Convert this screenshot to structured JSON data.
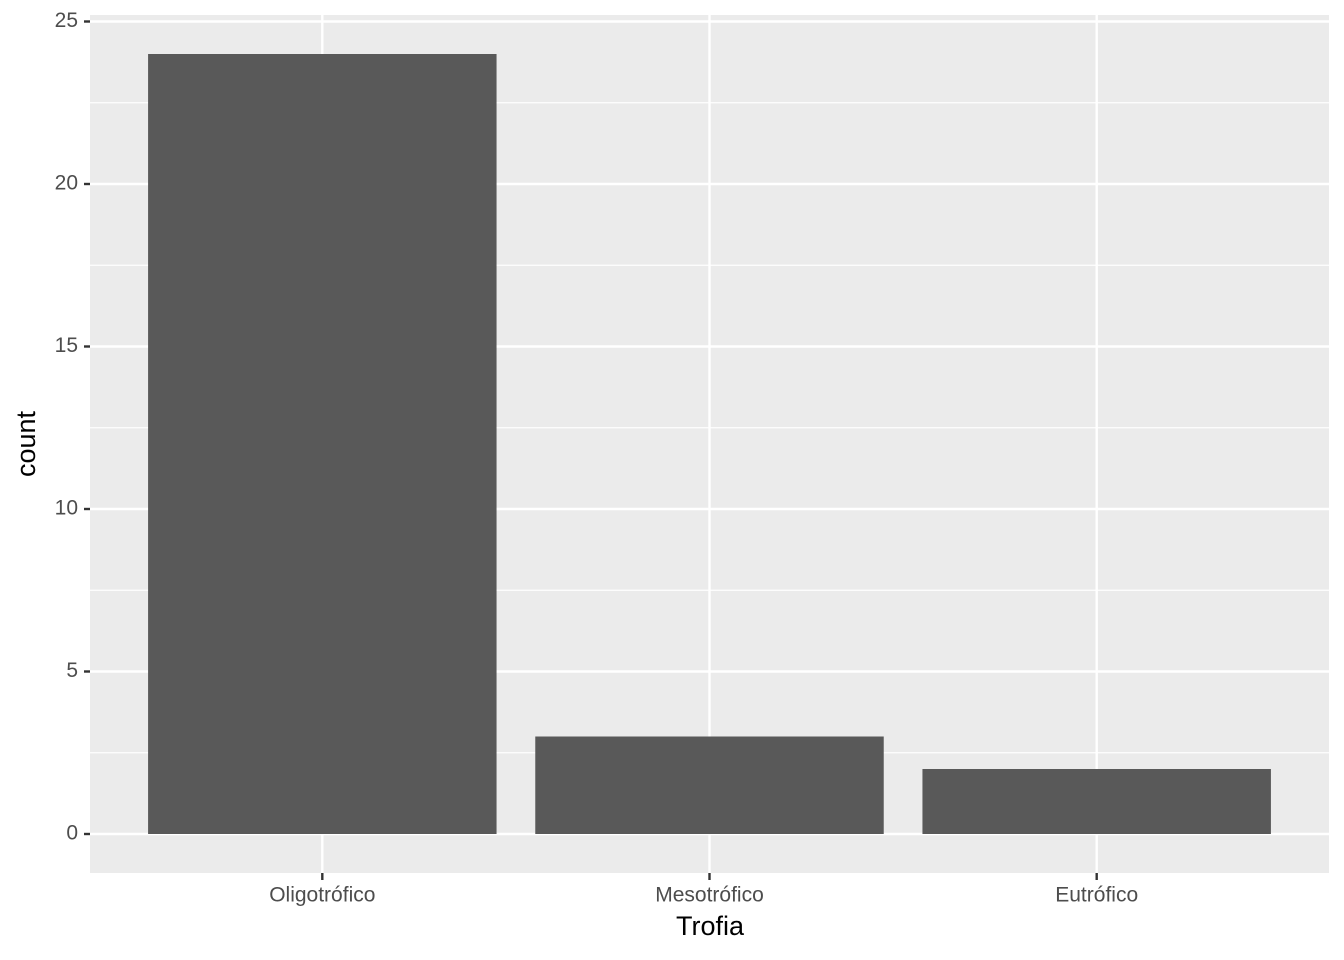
{
  "chart_data": {
    "type": "bar",
    "x_label": "Trofia",
    "y_label": "count",
    "categories": [
      "Oligotrófico",
      "Mesotrófico",
      "Eutrófico"
    ],
    "values": [
      24,
      3,
      2
    ],
    "color": "#595959",
    "ylim": [
      -1.2,
      25.2
    ],
    "yticks": [
      0,
      5,
      10,
      15,
      20,
      25
    ],
    "grid": true
  }
}
